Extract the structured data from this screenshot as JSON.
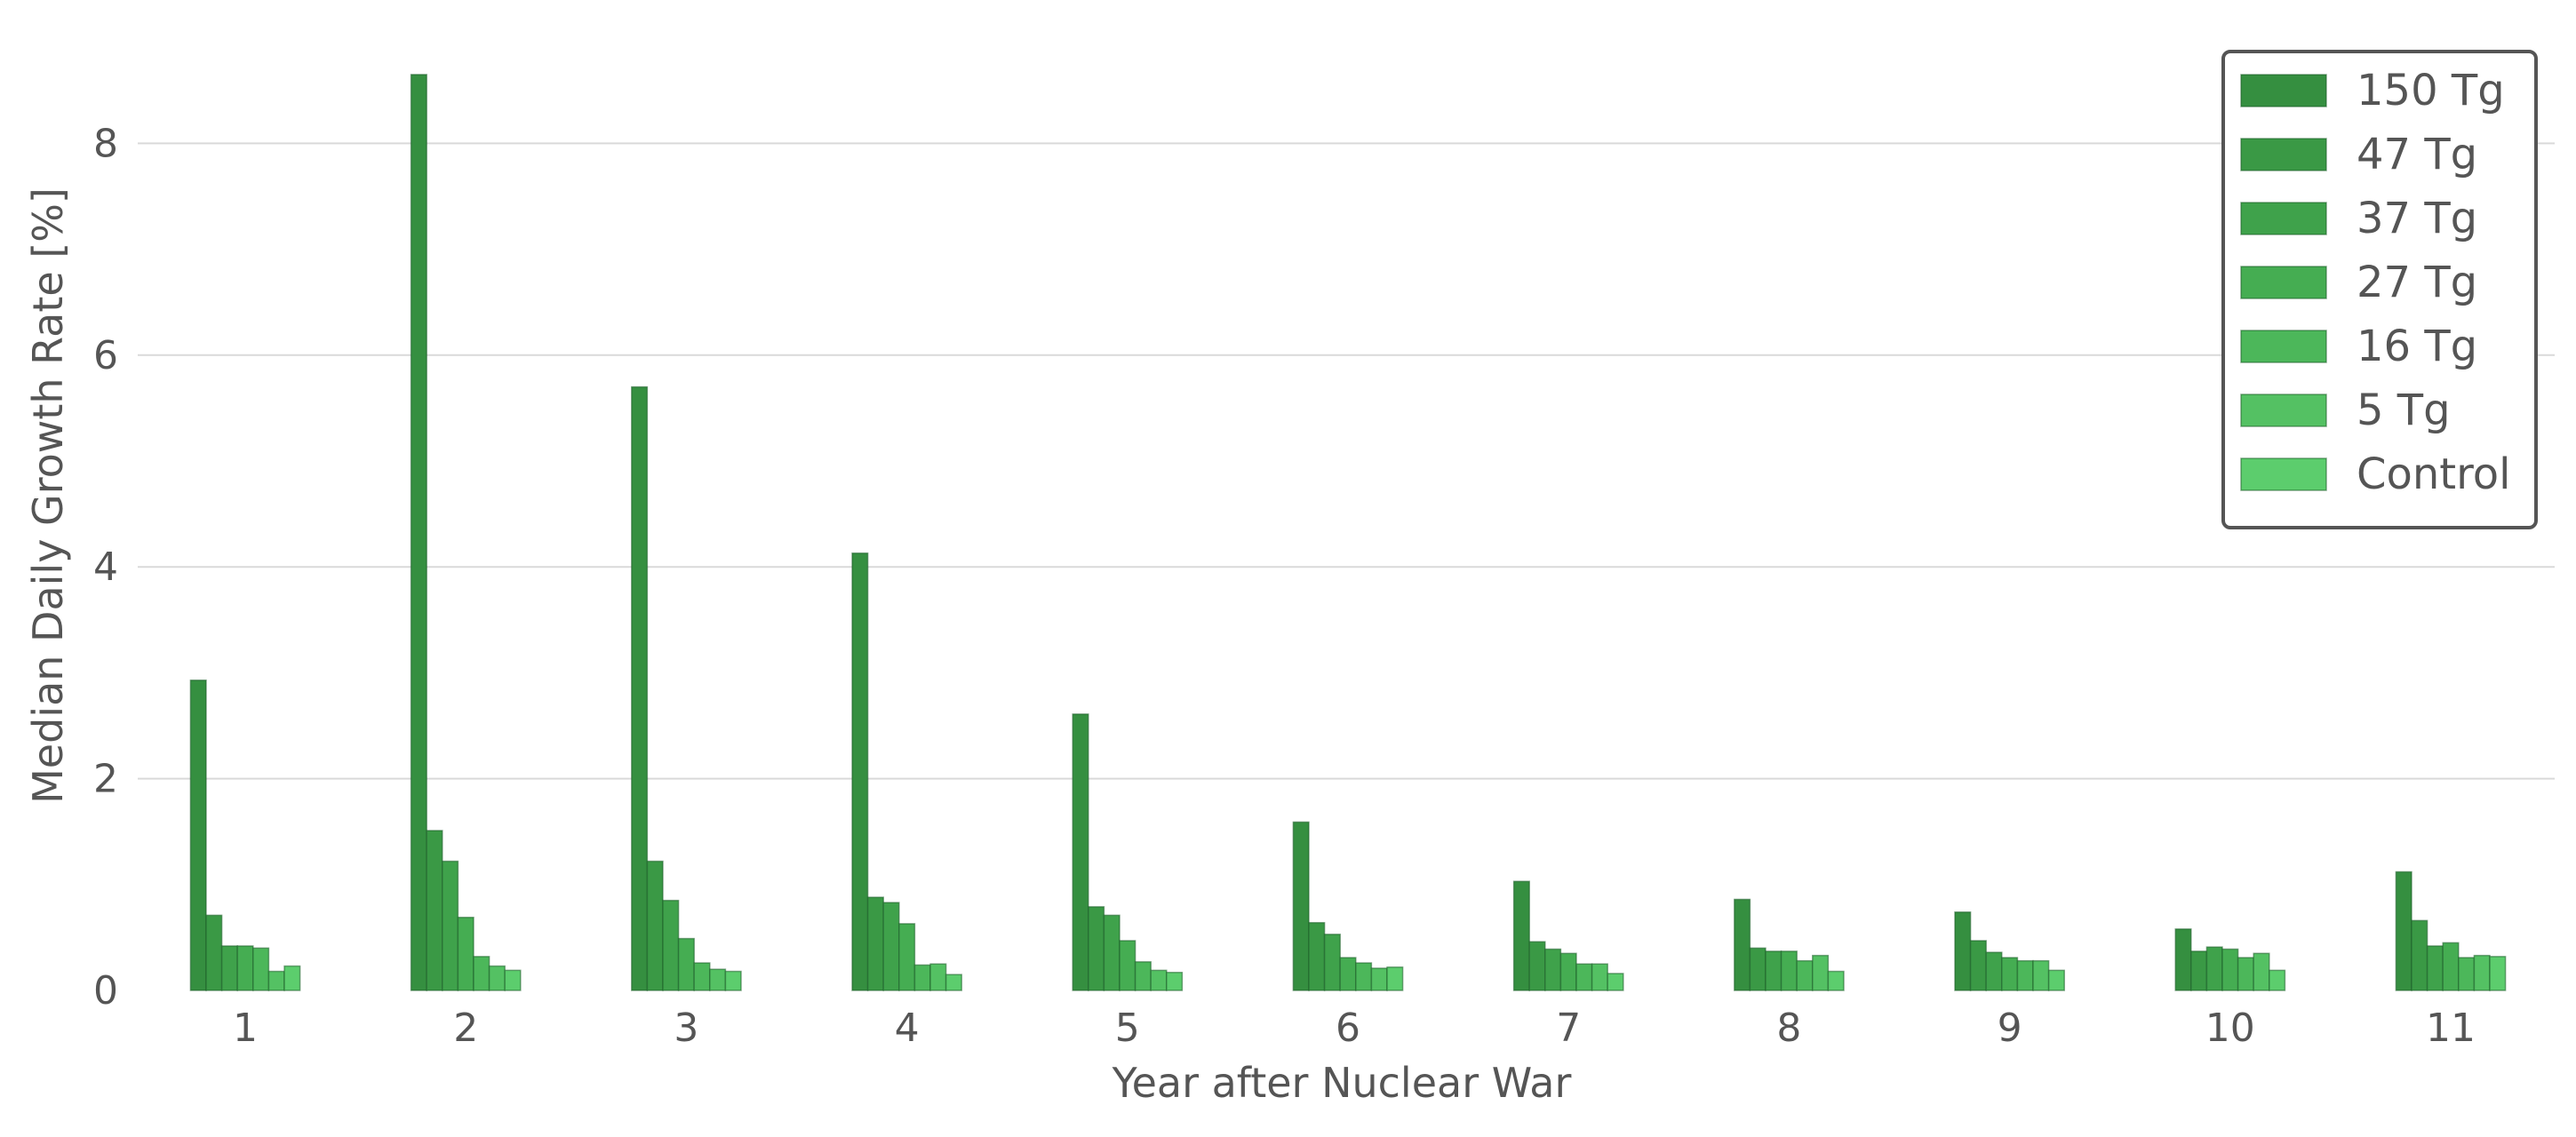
{
  "chart_data": {
    "type": "bar",
    "xlabel": "Year after Nuclear War",
    "ylabel": "Median Daily Growth Rate [%]",
    "categories": [
      "1",
      "2",
      "3",
      "4",
      "5",
      "6",
      "7",
      "8",
      "9",
      "10",
      "11"
    ],
    "ylim": [
      0,
      9
    ],
    "yticks": [
      "0",
      "2",
      "4",
      "6",
      "8"
    ],
    "grid": "horizontal",
    "legend_position": "top-right",
    "series": [
      {
        "name": "150 Tg",
        "color": "#358f40",
        "values": [
          2.93,
          8.65,
          5.7,
          4.13,
          2.61,
          1.59,
          1.03,
          0.86,
          0.74,
          0.58,
          1.12
        ]
      },
      {
        "name": "47 Tg",
        "color": "#3a9945",
        "values": [
          0.71,
          1.51,
          1.22,
          0.88,
          0.79,
          0.64,
          0.46,
          0.4,
          0.47,
          0.37,
          0.66
        ]
      },
      {
        "name": "37 Tg",
        "color": "#3fa24b",
        "values": [
          0.42,
          1.22,
          0.85,
          0.83,
          0.71,
          0.53,
          0.39,
          0.37,
          0.36,
          0.41,
          0.42
        ]
      },
      {
        "name": "27 Tg",
        "color": "#45ad52",
        "values": [
          0.42,
          0.69,
          0.49,
          0.63,
          0.47,
          0.31,
          0.35,
          0.37,
          0.31,
          0.39,
          0.45
        ]
      },
      {
        "name": "16 Tg",
        "color": "#4cb75a",
        "values": [
          0.4,
          0.32,
          0.26,
          0.24,
          0.27,
          0.26,
          0.25,
          0.28,
          0.28,
          0.31,
          0.31
        ]
      },
      {
        "name": "5 Tg",
        "color": "#54c163",
        "values": [
          0.18,
          0.23,
          0.2,
          0.25,
          0.19,
          0.21,
          0.25,
          0.33,
          0.28,
          0.35,
          0.33
        ]
      },
      {
        "name": "Control",
        "color": "#5ccd6d",
        "values": [
          0.23,
          0.19,
          0.18,
          0.15,
          0.17,
          0.22,
          0.16,
          0.18,
          0.19,
          0.19,
          0.32
        ]
      }
    ]
  }
}
